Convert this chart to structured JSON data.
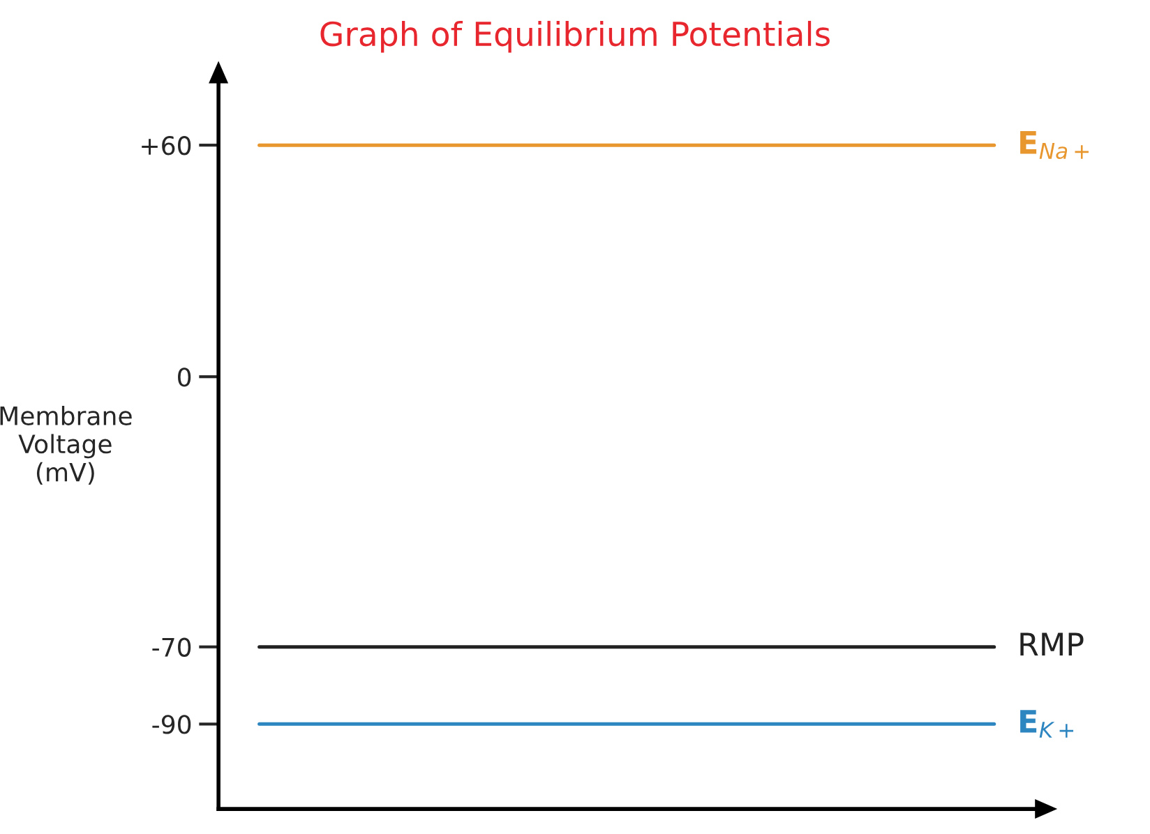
{
  "chart_data": {
    "type": "line",
    "title": "Graph of Equilibrium Potentials",
    "ylabel": "Membrane\nVoltage\n(mV)",
    "categories": [
      null,
      null,
      null,
      null,
      null,
      null,
      null,
      null,
      null,
      null
    ],
    "series": [
      {
        "name": "E$_{Na+}$",
        "color": "#e8962e",
        "values": [
          60,
          60,
          60,
          60,
          60,
          60,
          60,
          60,
          60,
          60
        ]
      },
      {
        "name": "RMP",
        "color": "#222222",
        "values": [
          -70,
          -70,
          -70,
          -70,
          -70,
          -70,
          -70,
          -70,
          -70,
          -70
        ]
      },
      {
        "name": "E$_{K+}$",
        "color": "#2e86c1",
        "values": [
          -90,
          -90,
          -90,
          -90,
          -90,
          -90,
          -90,
          -90,
          -90,
          -90
        ]
      }
    ],
    "ylim": [
      -112,
      76
    ],
    "yticks": [
      {
        "value": 60,
        "label": "+60"
      },
      {
        "value": 0,
        "label": "0"
      },
      {
        "value": -70,
        "label": "-70"
      },
      {
        "value": -90,
        "label": "-90"
      }
    ],
    "tick_labels": "y",
    "grid": false,
    "marker": "none",
    "line_style": "solid"
  }
}
